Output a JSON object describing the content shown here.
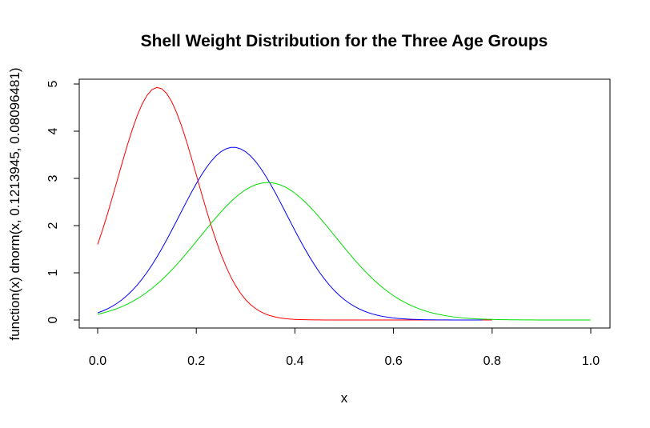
{
  "chart_data": {
    "type": "line",
    "title": "Shell Weight Distribution for the Three Age Groups",
    "xlabel": "x",
    "ylabel": "function(x) dnorm(x, 0.1213945, 0.08096481)",
    "xlim": [
      0,
      1
    ],
    "ylim": [
      0,
      5
    ],
    "x_ticks": [
      0,
      0.2,
      0.4,
      0.6,
      0.8,
      1
    ],
    "x_tick_labels": [
      "0.0",
      "0.2",
      "0.4",
      "0.6",
      "0.8",
      "1.0"
    ],
    "y_ticks": [
      0,
      1,
      2,
      3,
      4,
      5
    ],
    "y_tick_labels": [
      "0",
      "1",
      "2",
      "3",
      "4",
      "5"
    ],
    "grid": false,
    "legend": "none",
    "series": [
      {
        "color": "#ff0000",
        "mean": 0.1213945,
        "sd": 0.08096481,
        "x_range": [
          0,
          0.8
        ]
      },
      {
        "color": "#0000ff",
        "mean": 0.275,
        "sd": 0.109,
        "x_range": [
          0,
          0.78
        ]
      },
      {
        "color": "#00dd00",
        "mean": 0.345,
        "sd": 0.137,
        "x_range": [
          0,
          1
        ]
      }
    ]
  }
}
